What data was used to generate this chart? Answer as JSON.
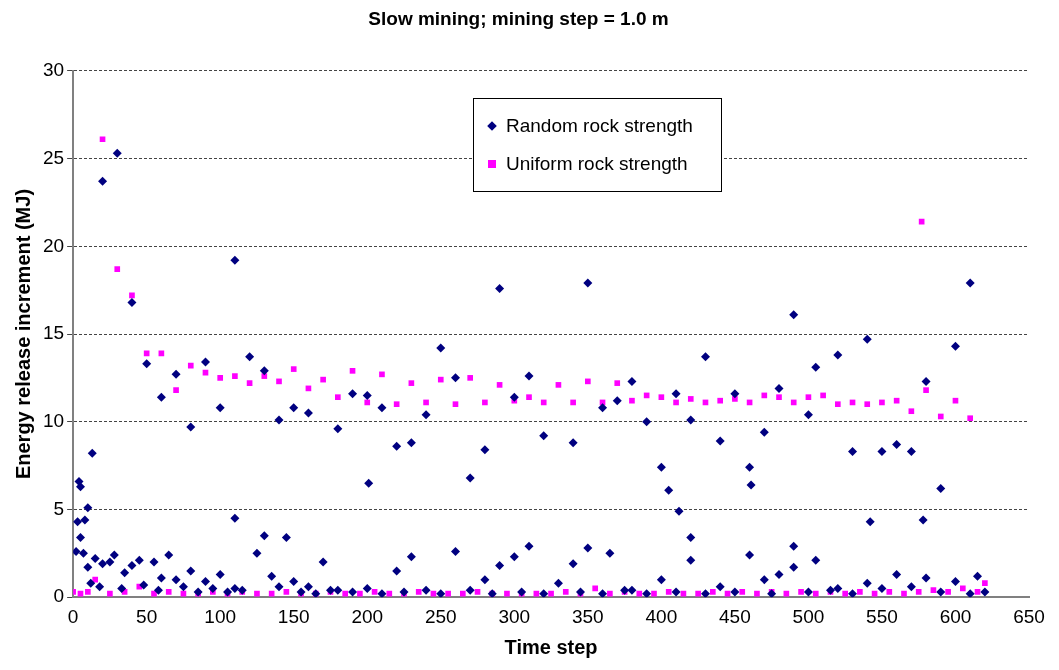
{
  "chart_data": {
    "type": "scatter",
    "title": "Slow mining; mining step = 1.0 m",
    "xlabel": "Time step",
    "ylabel": "Energy release increment (MJ)",
    "xlim": [
      0,
      650
    ],
    "xticks": [
      0,
      50,
      100,
      150,
      200,
      250,
      300,
      350,
      400,
      450,
      500,
      550,
      600,
      650
    ],
    "ylim": [
      0,
      30
    ],
    "yticks": [
      0,
      5,
      10,
      15,
      20,
      25,
      30
    ],
    "grid": "y",
    "legend": "top right",
    "series": [
      {
        "name": "Random rock strength",
        "color": "#000080",
        "marker": "diamond",
        "x": [
          3,
          4,
          5,
          8,
          10,
          13,
          20,
          30,
          40,
          50,
          60,
          70,
          80,
          90,
          100,
          110,
          110,
          120,
          130,
          140,
          150,
          160,
          180,
          190,
          200,
          201,
          210,
          220,
          230,
          240,
          250,
          260,
          270,
          280,
          290,
          300,
          310,
          320,
          340,
          350,
          360,
          370,
          380,
          390,
          400,
          405,
          410,
          412,
          420,
          420,
          430,
          440,
          450,
          460,
          461,
          470,
          480,
          490,
          490,
          500,
          505,
          520,
          530,
          540,
          542,
          550,
          560,
          570,
          578,
          580,
          590,
          600,
          610,
          615,
          2,
          5,
          7,
          10,
          15,
          20,
          25,
          28,
          35,
          40,
          45,
          55,
          60,
          65,
          70,
          80,
          90,
          100,
          110,
          125,
          130,
          135,
          145,
          150,
          160,
          170,
          180,
          200,
          220,
          230,
          240,
          260,
          280,
          290,
          300,
          310,
          330,
          340,
          350,
          365,
          380,
          400,
          420,
          440,
          460,
          470,
          480,
          490,
          505,
          520,
          540,
          560,
          580,
          600,
          12,
          18,
          33,
          48,
          58,
          75,
          85,
          95,
          105,
          115,
          140,
          155,
          165,
          175,
          190,
          210,
          225,
          250,
          270,
          285,
          305,
          320,
          345,
          360,
          375,
          390,
          410,
          430,
          450,
          475,
          500,
          515,
          530,
          550,
          570,
          590,
          610,
          620
        ],
        "values": [
          4.3,
          6.6,
          6.3,
          4.4,
          5.1,
          8.2,
          23.7,
          25.3,
          16.8,
          13.3,
          11.4,
          12.7,
          9.7,
          13.4,
          10.8,
          19.2,
          4.5,
          13.7,
          12.9,
          10.1,
          10.8,
          10.5,
          9.6,
          11.6,
          11.5,
          6.5,
          10.8,
          8.6,
          8.8,
          10.4,
          14.2,
          12.5,
          6.8,
          8.4,
          17.6,
          11.4,
          12.6,
          9.2,
          8.8,
          17.9,
          10.8,
          11.2,
          12.3,
          10.0,
          7.4,
          6.1,
          11.6,
          4.9,
          10.1,
          3.4,
          13.7,
          8.9,
          11.6,
          7.4,
          6.4,
          9.4,
          11.9,
          16.1,
          2.9,
          10.4,
          13.1,
          13.8,
          8.3,
          14.7,
          4.3,
          8.3,
          8.7,
          8.3,
          4.4,
          12.3,
          6.2,
          14.3,
          17.9,
          1.2,
          2.6,
          3.4,
          2.5,
          1.7,
          2.2,
          1.9,
          2.0,
          2.4,
          1.4,
          1.8,
          2.1,
          2.0,
          1.1,
          2.4,
          1.0,
          1.5,
          0.9,
          1.3,
          0.5,
          2.5,
          3.5,
          1.2,
          3.4,
          0.9,
          0.6,
          2.0,
          0.4,
          0.5,
          1.5,
          2.3,
          0.4,
          2.6,
          1.0,
          1.8,
          2.3,
          2.9,
          0.8,
          1.9,
          2.8,
          2.5,
          0.4,
          1.0,
          2.1,
          0.6,
          2.4,
          1.0,
          1.3,
          1.7,
          2.1,
          0.5,
          0.8,
          1.3,
          1.1,
          0.9,
          0.8,
          0.6,
          0.5,
          0.7,
          0.4,
          0.6,
          0.3,
          0.5,
          0.3,
          0.4,
          0.6,
          0.3,
          0.2,
          0.4,
          0.3,
          0.2,
          0.3,
          0.2,
          0.4,
          0.2,
          0.3,
          0.2,
          0.3,
          0.2,
          0.4,
          0.2,
          0.3,
          0.2,
          0.3,
          0.2,
          0.3,
          0.4,
          0.2,
          0.5,
          0.6,
          0.3,
          0.2,
          0.3
        ]
      },
      {
        "name": "Uniform rock strength",
        "color": "#ff00ff",
        "marker": "square",
        "x": [
          20,
          30,
          40,
          50,
          60,
          70,
          80,
          90,
          100,
          110,
          120,
          130,
          140,
          150,
          160,
          170,
          180,
          190,
          200,
          210,
          220,
          230,
          240,
          250,
          260,
          270,
          280,
          290,
          300,
          310,
          320,
          330,
          340,
          350,
          360,
          370,
          380,
          390,
          400,
          410,
          420,
          430,
          440,
          450,
          460,
          470,
          480,
          490,
          500,
          510,
          520,
          530,
          540,
          550,
          560,
          570,
          577,
          580,
          590,
          600,
          610,
          0,
          5,
          10,
          15,
          25,
          35,
          45,
          55,
          65,
          75,
          85,
          95,
          105,
          115,
          125,
          135,
          145,
          155,
          165,
          175,
          185,
          195,
          205,
          215,
          225,
          235,
          245,
          255,
          265,
          275,
          285,
          295,
          305,
          315,
          325,
          335,
          345,
          355,
          365,
          375,
          385,
          395,
          405,
          415,
          425,
          435,
          445,
          455,
          465,
          475,
          485,
          495,
          505,
          515,
          525,
          535,
          545,
          555,
          565,
          575,
          585,
          595,
          605,
          615,
          620
        ],
        "values": [
          26.1,
          18.7,
          17.2,
          13.9,
          13.9,
          11.8,
          13.2,
          12.8,
          12.5,
          12.6,
          12.2,
          12.6,
          12.3,
          13.0,
          11.9,
          12.4,
          11.4,
          12.9,
          11.1,
          12.7,
          11.0,
          12.2,
          11.1,
          12.4,
          11.0,
          12.5,
          11.1,
          12.1,
          11.2,
          11.4,
          11.1,
          12.1,
          11.1,
          12.3,
          11.1,
          12.2,
          11.2,
          11.5,
          11.4,
          11.1,
          11.3,
          11.1,
          11.2,
          11.3,
          11.1,
          11.5,
          11.4,
          11.1,
          11.4,
          11.5,
          11.0,
          11.1,
          11.0,
          11.1,
          11.2,
          10.6,
          21.4,
          11.8,
          10.3,
          11.2,
          10.2,
          0.3,
          0.2,
          0.3,
          1.0,
          0.2,
          0.3,
          0.6,
          0.2,
          0.3,
          0.2,
          0.2,
          0.3,
          0.2,
          0.3,
          0.2,
          0.2,
          0.3,
          0.2,
          0.2,
          0.3,
          0.2,
          0.2,
          0.3,
          0.2,
          0.2,
          0.3,
          0.2,
          0.2,
          0.2,
          0.3,
          0.2,
          0.2,
          0.2,
          0.2,
          0.2,
          0.3,
          0.2,
          0.5,
          0.2,
          0.3,
          0.2,
          0.2,
          0.3,
          0.2,
          0.2,
          0.3,
          0.2,
          0.3,
          0.2,
          0.3,
          0.2,
          0.3,
          0.2,
          0.3,
          0.2,
          0.3,
          0.2,
          0.3,
          0.2,
          0.3,
          0.4,
          0.3,
          0.5,
          0.3,
          0.8
        ]
      }
    ]
  }
}
